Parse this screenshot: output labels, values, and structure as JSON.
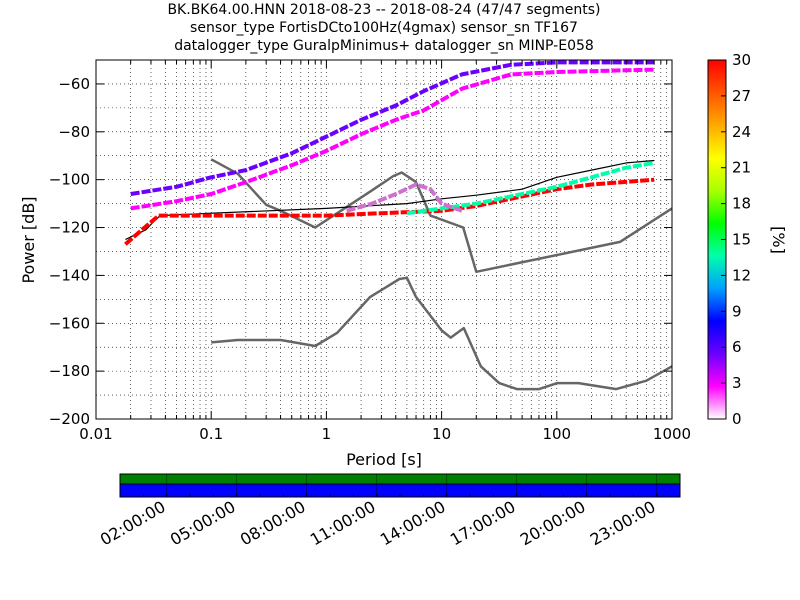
{
  "title": {
    "line1": "BK.BK64.00.HNN   2018-08-23 -- 2018-08-24  (47/47 segments)",
    "line2": "sensor_type FortisDCto100Hz(4gmax) sensor_sn TF167",
    "line3": "datalogger_type GuralpMinimus+ datalogger_sn MINP-E058"
  },
  "chart_data": {
    "type": "heatmap",
    "xlabel": "Period [s]",
    "ylabel": "Power [dB]",
    "xscale": "log",
    "xlim": [
      0.01,
      1000
    ],
    "ylim": [
      -200,
      -50
    ],
    "x_ticks": [
      0.01,
      0.1,
      1,
      10,
      100,
      1000
    ],
    "x_tick_labels": [
      "0.01",
      "0.1",
      "1",
      "10",
      "100",
      "1000"
    ],
    "y_ticks": [
      -200,
      -180,
      -160,
      -140,
      -120,
      -100,
      -80,
      -60
    ],
    "y_tick_labels": [
      "−200",
      "−180",
      "−160",
      "−140",
      "−120",
      "−100",
      "−80",
      "−60"
    ],
    "grid": true,
    "colorbar": {
      "label": "[%]",
      "range": [
        0,
        30
      ],
      "ticks": [
        0,
        3,
        6,
        9,
        12,
        15,
        18,
        21,
        24,
        27,
        30
      ],
      "tick_labels": [
        "0",
        "3",
        "6",
        "9",
        "12",
        "15",
        "18",
        "21",
        "24",
        "27",
        "30"
      ],
      "colormap": [
        "#ffffff",
        "#ff00ff",
        "#6a00ff",
        "#0000ff",
        "#00a0ff",
        "#00ffaa",
        "#00ff00",
        "#aaff00",
        "#ffff00",
        "#ffaa00",
        "#ff5500",
        "#ff0000"
      ]
    },
    "series": [
      {
        "kind": "noise_model",
        "color": "#666666",
        "points": [
          [
            0.1,
            -168
          ],
          [
            0.17,
            -167
          ],
          [
            0.4,
            -167
          ],
          [
            0.8,
            -169.5
          ],
          [
            1.24,
            -164
          ],
          [
            2.4,
            -149
          ],
          [
            4.3,
            -141.5
          ],
          [
            5.0,
            -141
          ],
          [
            6.0,
            -149
          ],
          [
            10,
            -163
          ],
          [
            12,
            -166
          ],
          [
            15.6,
            -162
          ],
          [
            21.9,
            -178
          ],
          [
            31.6,
            -185
          ],
          [
            45,
            -187.5
          ],
          [
            70,
            -187.5
          ],
          [
            101,
            -185
          ],
          [
            154,
            -185
          ],
          [
            328,
            -187.5
          ],
          [
            600,
            -184
          ],
          [
            1000,
            -178
          ]
        ]
      },
      {
        "kind": "noise_model",
        "color": "#666666",
        "points": [
          [
            0.1,
            -91.5
          ],
          [
            0.17,
            -97.5
          ],
          [
            0.3,
            -110.5
          ],
          [
            0.4,
            -113
          ],
          [
            0.8,
            -120
          ],
          [
            1.24,
            -114
          ],
          [
            2.4,
            -105
          ],
          [
            3.8,
            -98.5
          ],
          [
            4.5,
            -97
          ],
          [
            6.0,
            -101
          ],
          [
            8.0,
            -115
          ],
          [
            15.4,
            -120
          ],
          [
            20,
            -138.5
          ],
          [
            354,
            -126
          ],
          [
            1000,
            -112
          ]
        ]
      },
      {
        "kind": "mean_psd",
        "color": "#000000",
        "points": [
          [
            0.018,
            -125
          ],
          [
            0.022,
            -123
          ],
          [
            0.027,
            -121
          ],
          [
            0.031,
            -118
          ],
          [
            0.036,
            -115
          ],
          [
            0.1,
            -114
          ],
          [
            1,
            -112
          ],
          [
            5,
            -110
          ],
          [
            10,
            -108
          ],
          [
            20,
            -106.5
          ],
          [
            50,
            -104
          ],
          [
            100,
            -99
          ],
          [
            200,
            -96
          ],
          [
            400,
            -93
          ],
          [
            700,
            -92
          ]
        ]
      },
      {
        "kind": "psd_band",
        "color": "#6a00ff",
        "points": [
          [
            0.02,
            -106
          ],
          [
            0.05,
            -103
          ],
          [
            0.1,
            -99
          ],
          [
            0.2,
            -96
          ],
          [
            0.5,
            -89
          ],
          [
            1,
            -82
          ],
          [
            2,
            -75
          ],
          [
            4,
            -69
          ],
          [
            7,
            -63
          ],
          [
            15,
            -56
          ],
          [
            40,
            -52
          ],
          [
            100,
            -51
          ],
          [
            700,
            -51
          ]
        ]
      },
      {
        "kind": "psd_band",
        "color": "#ff00ff",
        "points": [
          [
            0.02,
            -112
          ],
          [
            0.05,
            -109
          ],
          [
            0.1,
            -106
          ],
          [
            0.2,
            -101
          ],
          [
            0.5,
            -94
          ],
          [
            1,
            -88
          ],
          [
            2,
            -81
          ],
          [
            4,
            -75
          ],
          [
            7,
            -71
          ],
          [
            15,
            -62
          ],
          [
            40,
            -56
          ],
          [
            100,
            -55
          ],
          [
            700,
            -54
          ]
        ]
      },
      {
        "kind": "psd_band",
        "color": "#ff0000",
        "points": [
          [
            0.018,
            -127
          ],
          [
            0.025,
            -121
          ],
          [
            0.035,
            -115
          ],
          [
            0.1,
            -115
          ],
          [
            0.3,
            -115
          ],
          [
            1,
            -115
          ],
          [
            3,
            -114
          ],
          [
            10,
            -113
          ],
          [
            20,
            -111
          ],
          [
            50,
            -107
          ],
          [
            100,
            -104
          ],
          [
            200,
            -102
          ],
          [
            700,
            -100
          ]
        ]
      },
      {
        "kind": "psd_band",
        "color": "#00ffaa",
        "points": [
          [
            5,
            -114
          ],
          [
            10,
            -112
          ],
          [
            20,
            -110
          ],
          [
            50,
            -106
          ],
          [
            100,
            -103
          ],
          [
            200,
            -99
          ],
          [
            400,
            -95
          ],
          [
            700,
            -93
          ]
        ]
      },
      {
        "kind": "psd_band",
        "color": "#d070d0",
        "points": [
          [
            1.5,
            -113
          ],
          [
            2.5,
            -110
          ],
          [
            4,
            -106
          ],
          [
            6,
            -102
          ],
          [
            8,
            -104
          ],
          [
            10,
            -110
          ],
          [
            15,
            -113
          ]
        ]
      }
    ]
  },
  "time_axis": {
    "labels": [
      "02:00:00",
      "05:00:00",
      "08:00:00",
      "11:00:00",
      "14:00:00",
      "17:00:00",
      "20:00:00",
      "23:00:00"
    ],
    "bar_colors": [
      "#008000",
      "#0000ff"
    ],
    "segments": 47
  }
}
